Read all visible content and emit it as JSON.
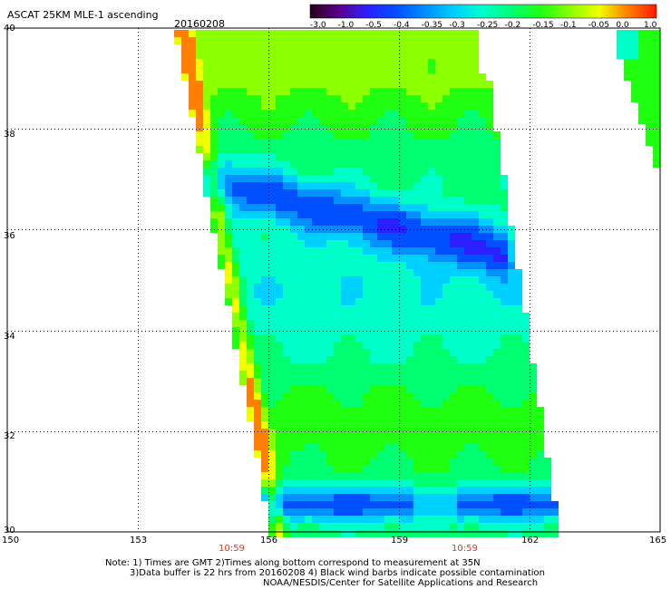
{
  "header": {
    "title": "ASCAT 25KM MLE-1 ascending",
    "date": "20160208"
  },
  "colorbar": {
    "labels": [
      "-3.0",
      "-1.0",
      "-0.5",
      "-0.4",
      "-0.35",
      "-0.3",
      "-0.25",
      "-0.2",
      "-0.15",
      "-0.1",
      "-0.05",
      "0.0",
      "1.0"
    ],
    "colors": [
      "#280018",
      "#5a0090",
      "#2a20ff",
      "#0050ff",
      "#0090ff",
      "#00d0ff",
      "#00ffc8",
      "#00ff70",
      "#20ff10",
      "#8cff00",
      "#f0ff00",
      "#ff8000",
      "#ff1800"
    ]
  },
  "map": {
    "lat_labels": [
      "40",
      "38",
      "36",
      "34",
      "32",
      "30"
    ],
    "lon_labels": [
      "150",
      "153",
      "156",
      "159",
      "162",
      "165"
    ],
    "lat_range": [
      30,
      40
    ],
    "lon_range": [
      150,
      165
    ],
    "grid_lons": [
      153,
      156,
      159,
      162
    ],
    "grid_lats": [
      32,
      34,
      36,
      38
    ],
    "times": [
      {
        "label": "10:59",
        "lon": 156
      },
      {
        "label": "10:59",
        "lon": 161.3
      }
    ]
  },
  "notes": {
    "line1": "Note: 1) Times are GMT 2)Times along bottom correspond to measurement at 35N",
    "line2": "3)Data buffer is 22 hrs from 20160208 4) Black wind barbs indicate possible contamination",
    "line3": "NOAA/NESDIS/Center for Satellite Applications and Research"
  }
}
